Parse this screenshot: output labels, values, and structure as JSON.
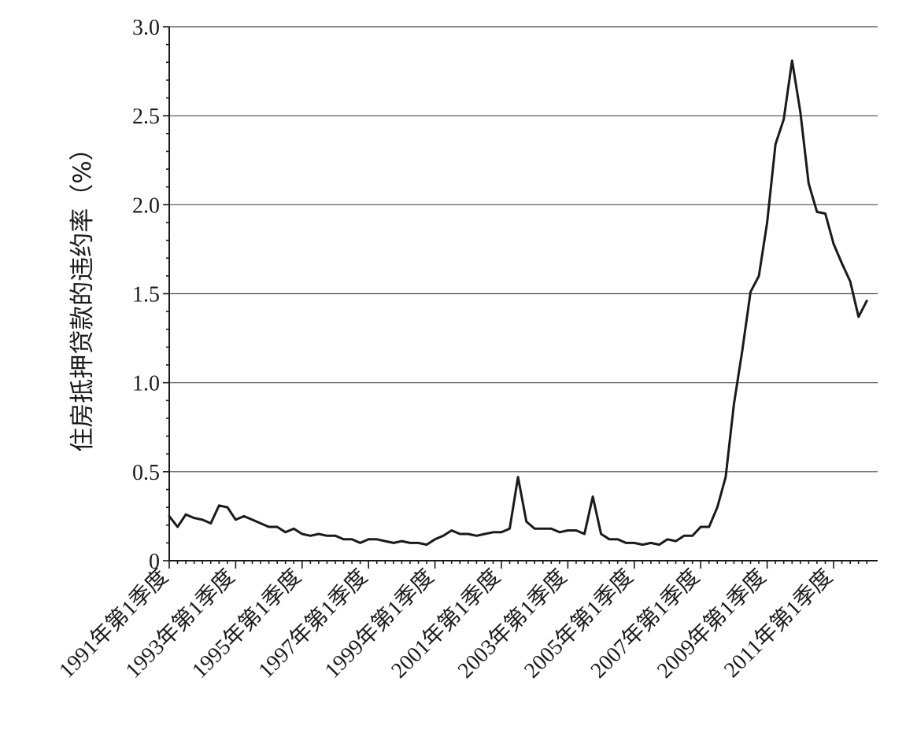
{
  "chart_data": {
    "type": "line",
    "title": "",
    "xlabel": "",
    "ylabel": "住房抵押贷款的违约率（%）",
    "ylim": [
      0,
      3.0
    ],
    "yticks": [
      "0",
      "0.5",
      "1.0",
      "1.5",
      "2.0",
      "2.5",
      "3.0"
    ],
    "ytick_values": [
      0,
      0.5,
      1.0,
      1.5,
      2.0,
      2.5,
      3.0
    ],
    "grid": "horizontal",
    "legend": "none",
    "line_color": "#1a1a1a",
    "xticks": [
      "1991年第1季度",
      "1993年第1季度",
      "1995年第1季度",
      "1997年第1季度",
      "1999年第1季度",
      "2001年第1季度",
      "2003年第1季度",
      "2005年第1季度",
      "2007年第1季度",
      "2009年第1季度",
      "2011年第1季度"
    ],
    "xtick_index": [
      0,
      8,
      16,
      24,
      32,
      40,
      48,
      56,
      64,
      72,
      80
    ],
    "series": [
      {
        "values": [
          0.25,
          0.19,
          0.26,
          0.24,
          0.23,
          0.21,
          0.31,
          0.3,
          0.23,
          0.25,
          0.23,
          0.21,
          0.19,
          0.19,
          0.16,
          0.18,
          0.15,
          0.14,
          0.15,
          0.14,
          0.14,
          0.12,
          0.12,
          0.1,
          0.12,
          0.12,
          0.11,
          0.1,
          0.11,
          0.1,
          0.1,
          0.09,
          0.12,
          0.14,
          0.17,
          0.15,
          0.15,
          0.14,
          0.15,
          0.16,
          0.16,
          0.18,
          0.47,
          0.22,
          0.18,
          0.18,
          0.18,
          0.16,
          0.17,
          0.17,
          0.15,
          0.36,
          0.15,
          0.12,
          0.12,
          0.1,
          0.1,
          0.09,
          0.1,
          0.09,
          0.12,
          0.11,
          0.14,
          0.14,
          0.19,
          0.19,
          0.3,
          0.47,
          0.88,
          1.18,
          1.51,
          1.6,
          1.9,
          2.34,
          2.48,
          2.81,
          2.52,
          2.12,
          1.96,
          1.95,
          1.78,
          1.67,
          1.57,
          1.37,
          1.46
        ]
      }
    ]
  }
}
